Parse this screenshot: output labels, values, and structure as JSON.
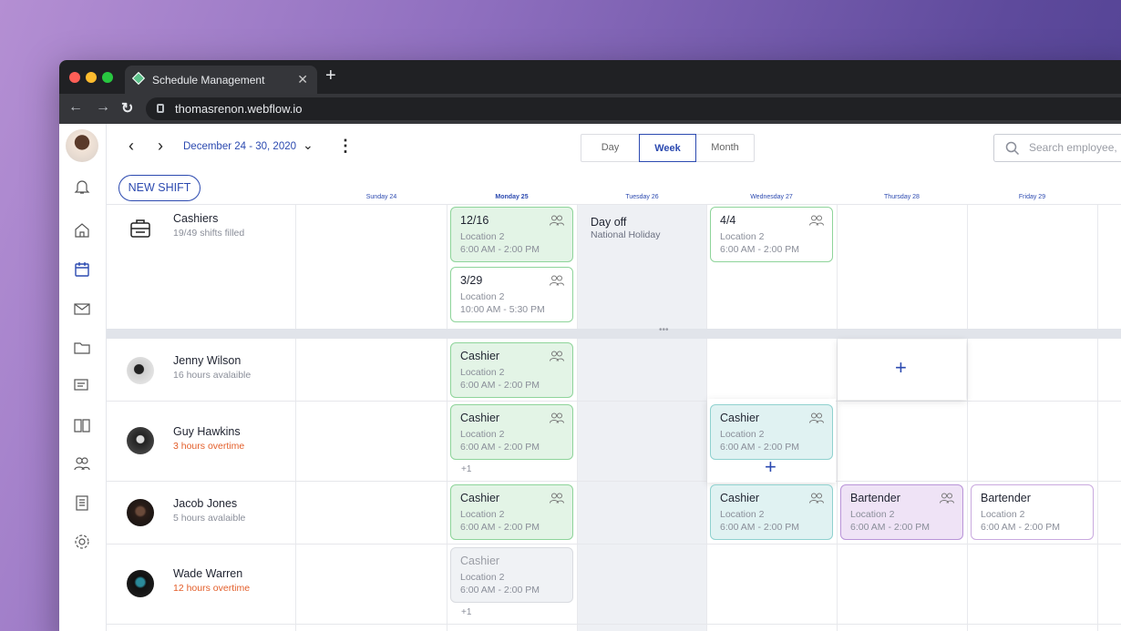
{
  "browser": {
    "tab_title": "Schedule Management",
    "url": "thomasrenon.webflow.io"
  },
  "toolbar": {
    "date_range": "December 24 - 30, 2020",
    "views": [
      "Day",
      "Week",
      "Month"
    ],
    "active_view": "Week",
    "search_placeholder": "Search employee,",
    "new_shift": "NEW SHIFT"
  },
  "days": [
    "Sunday 24",
    "Monday 25",
    "Tuesday 26",
    "Wednesday 27",
    "Thursday 28",
    "Friday 29"
  ],
  "group": {
    "name": "Cashiers",
    "sub": "19/49 shifts filled"
  },
  "employees": [
    {
      "name": "Jenny Wilson",
      "sub": "16 hours avalaible",
      "overtime": false
    },
    {
      "name": "Guy Hawkins",
      "sub": "3 hours overtime",
      "overtime": true
    },
    {
      "name": "Jacob Jones",
      "sub": "5 hours avalaible",
      "overtime": false
    },
    {
      "name": "Wade Warren",
      "sub": "12 hours overtime",
      "overtime": true
    }
  ],
  "cards": {
    "c1": {
      "title": "12/16",
      "loc": "Location 2",
      "time": "6:00 AM - 2:00 PM"
    },
    "c2": {
      "title": "3/29",
      "loc": "Location 2",
      "time": "10:00 AM - 5:30 PM"
    },
    "dayoff": {
      "title": "Day off",
      "sub": "National Holiday"
    },
    "c3": {
      "title": "4/4",
      "loc": "Location 2",
      "time": "6:00 AM - 2:00 PM"
    },
    "j1": {
      "title": "Cashier",
      "loc": "Location 2",
      "time": "6:00 AM - 2:00 PM"
    },
    "g1": {
      "title": "Cashier",
      "loc": "Location 2",
      "time": "6:00 AM - 2:00 PM"
    },
    "g2": {
      "title": "Cashier",
      "loc": "Location 2",
      "time": "6:00 AM - 2:00 PM"
    },
    "jj1": {
      "title": "Cashier",
      "loc": "Location 2",
      "time": "6:00 AM - 2:00 PM"
    },
    "jj2": {
      "title": "Cashier",
      "loc": "Location 2",
      "time": "6:00 AM - 2:00 PM"
    },
    "jj3": {
      "title": "Bartender",
      "loc": "Location 2",
      "time": "6:00 AM - 2:00 PM"
    },
    "jj4": {
      "title": "Bartender",
      "loc": "Location 2",
      "time": "6:00 AM - 2:00 PM"
    },
    "w1": {
      "title": "Cashier",
      "loc": "Location 2",
      "time": "6:00 AM - 2:00 PM"
    }
  },
  "more_label": "+1",
  "colors": {
    "accent": "#2c4ab0",
    "overtime": "#e35e2a"
  }
}
